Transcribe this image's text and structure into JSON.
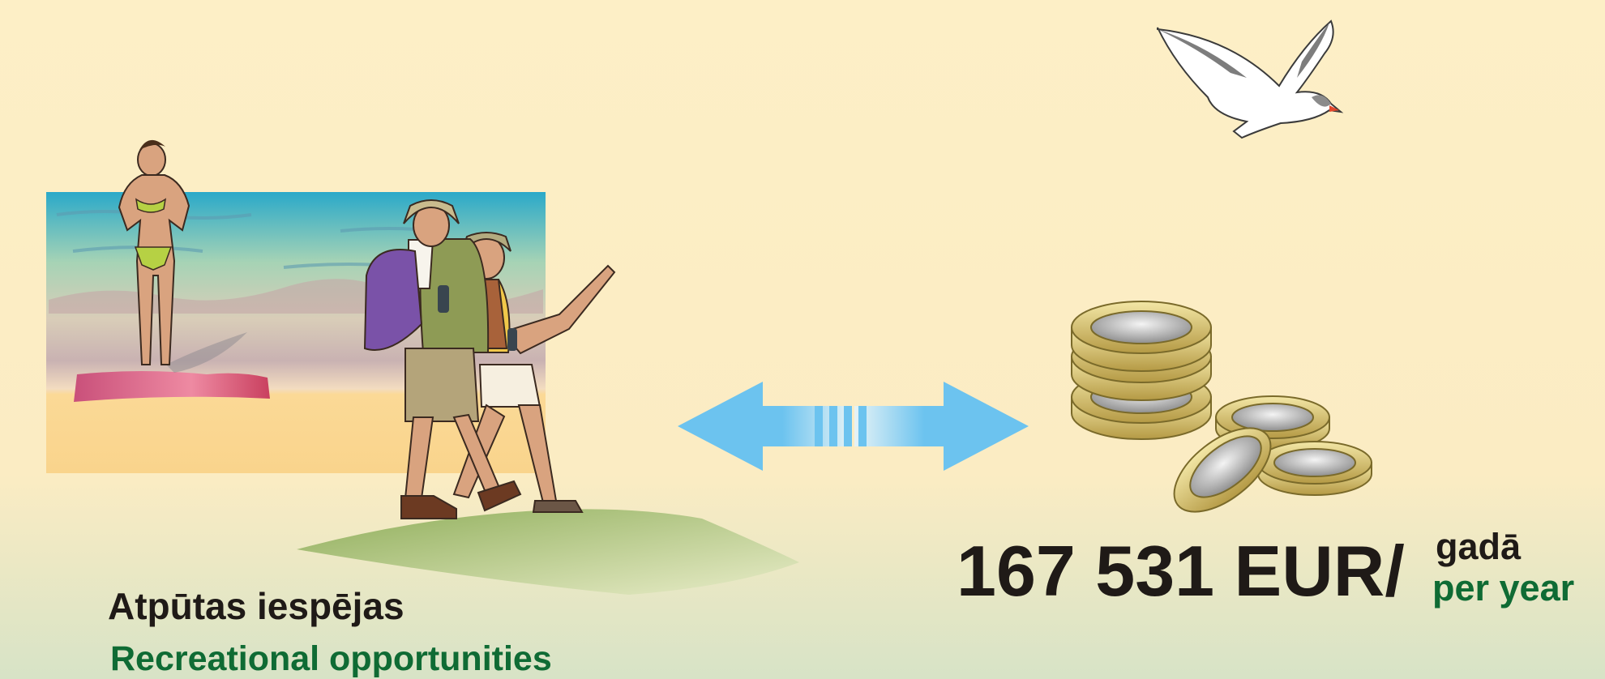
{
  "left": {
    "title_lv": "Atpūtas iespējas",
    "title_en": "Recreational opportunities"
  },
  "right": {
    "amount": "167 531 EUR/",
    "period_lv": "gadā",
    "period_en": "per year"
  }
}
